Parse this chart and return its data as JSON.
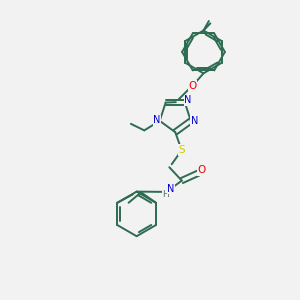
{
  "background_color": "#f2f2f2",
  "bond_color": "#2d6b52",
  "atom_colors": {
    "N": "#0000cc",
    "O": "#ee0000",
    "S": "#cccc00",
    "H": "#607070",
    "C": "#2d6b52"
  },
  "figsize": [
    3.0,
    3.0
  ],
  "dpi": 100
}
